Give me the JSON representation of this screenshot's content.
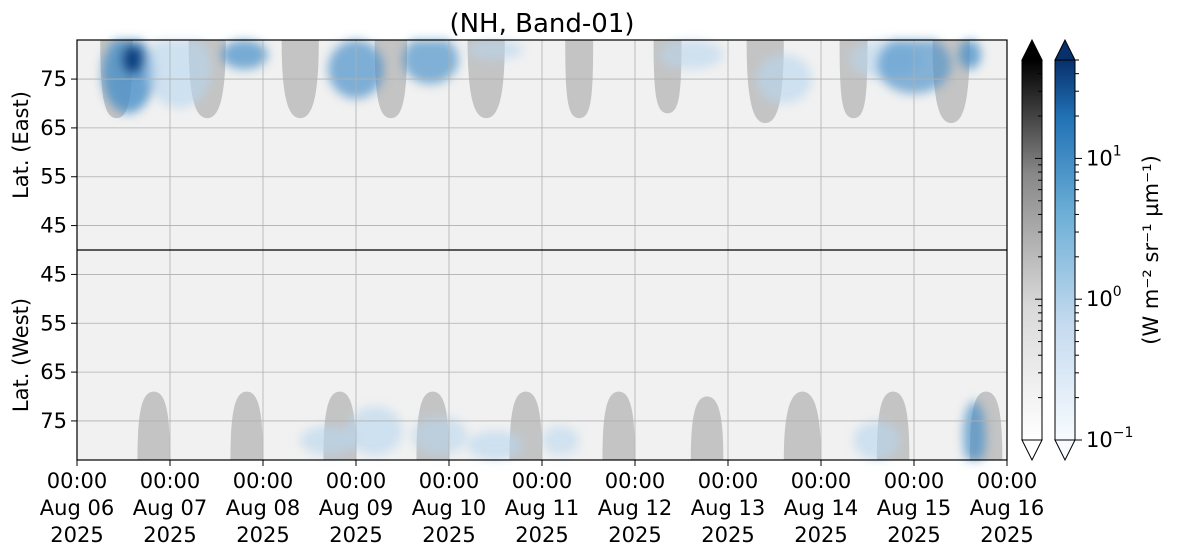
{
  "chart_data": {
    "type": "heatmap",
    "title": "(NH, Band-01)",
    "y_upper_label": "Lat. (East)",
    "y_lower_label": "Lat. (West)",
    "y_upper_ticks": [
      "45",
      "55",
      "65",
      "75"
    ],
    "y_lower_ticks": [
      "75",
      "65",
      "55",
      "45"
    ],
    "x_ticks": [
      {
        "time": "00:00",
        "date": "Aug 06",
        "year": "2025"
      },
      {
        "time": "00:00",
        "date": "Aug 07",
        "year": "2025"
      },
      {
        "time": "00:00",
        "date": "Aug 08",
        "year": "2025"
      },
      {
        "time": "00:00",
        "date": "Aug 09",
        "year": "2025"
      },
      {
        "time": "00:00",
        "date": "Aug 10",
        "year": "2025"
      },
      {
        "time": "00:00",
        "date": "Aug 11",
        "year": "2025"
      },
      {
        "time": "00:00",
        "date": "Aug 12",
        "year": "2025"
      },
      {
        "time": "00:00",
        "date": "Aug 13",
        "year": "2025"
      },
      {
        "time": "00:00",
        "date": "Aug 14",
        "year": "2025"
      },
      {
        "time": "00:00",
        "date": "Aug 15",
        "year": "2025"
      },
      {
        "time": "00:00",
        "date": "Aug 16",
        "year": "2025"
      }
    ],
    "x_range": [
      "2025-08-06 00:00",
      "2025-08-16 00:00"
    ],
    "lat_range": [
      40,
      83
    ],
    "grid": true,
    "colorbar": {
      "label": "(W m⁻² sr⁻¹ µm⁻¹)",
      "scale": "log",
      "range": [
        0.1,
        50
      ],
      "tick_labels": [
        {
          "base": "10",
          "exp": "−1",
          "value": 0.1
        },
        {
          "base": "10",
          "exp": "0",
          "value": 1
        },
        {
          "base": "10",
          "exp": "1",
          "value": 10
        }
      ],
      "colormaps": [
        "Greys",
        "Blues"
      ],
      "extend": "both"
    },
    "colors": {
      "no_data": "#c4c4c4",
      "background": "#f1f1f1",
      "blue_peak": "#0e3f80",
      "blue_mid": "#4a90c8",
      "blue_light": "#b8d6ee"
    },
    "no_data_gaps": [
      {
        "hemisphere": "east",
        "start_day": 0.25,
        "end_day": 0.6,
        "min_lat": 67
      },
      {
        "hemisphere": "east",
        "start_day": 1.2,
        "end_day": 1.6,
        "min_lat": 67
      },
      {
        "hemisphere": "east",
        "start_day": 2.2,
        "end_day": 2.6,
        "min_lat": 67
      },
      {
        "hemisphere": "east",
        "start_day": 3.2,
        "end_day": 3.55,
        "min_lat": 67
      },
      {
        "hemisphere": "east",
        "start_day": 4.2,
        "end_day": 4.6,
        "min_lat": 67
      },
      {
        "hemisphere": "east",
        "start_day": 5.25,
        "end_day": 5.55,
        "min_lat": 67
      },
      {
        "hemisphere": "east",
        "start_day": 6.2,
        "end_day": 6.5,
        "min_lat": 68
      },
      {
        "hemisphere": "east",
        "start_day": 7.2,
        "end_day": 7.6,
        "min_lat": 66
      },
      {
        "hemisphere": "east",
        "start_day": 8.2,
        "end_day": 8.5,
        "min_lat": 67
      },
      {
        "hemisphere": "east",
        "start_day": 9.2,
        "end_day": 9.6,
        "min_lat": 66
      },
      {
        "hemisphere": "west",
        "start_day": 0.65,
        "end_day": 1.0,
        "min_lat": 69
      },
      {
        "hemisphere": "west",
        "start_day": 1.65,
        "end_day": 2.0,
        "min_lat": 69
      },
      {
        "hemisphere": "west",
        "start_day": 2.65,
        "end_day": 3.0,
        "min_lat": 69
      },
      {
        "hemisphere": "west",
        "start_day": 3.65,
        "end_day": 4.0,
        "min_lat": 69
      },
      {
        "hemisphere": "west",
        "start_day": 4.65,
        "end_day": 5.0,
        "min_lat": 69
      },
      {
        "hemisphere": "west",
        "start_day": 5.65,
        "end_day": 6.0,
        "min_lat": 69
      },
      {
        "hemisphere": "west",
        "start_day": 6.6,
        "end_day": 6.95,
        "min_lat": 70
      },
      {
        "hemisphere": "west",
        "start_day": 7.6,
        "end_day": 8.0,
        "min_lat": 69
      },
      {
        "hemisphere": "west",
        "start_day": 8.6,
        "end_day": 8.95,
        "min_lat": 69
      },
      {
        "hemisphere": "west",
        "start_day": 9.6,
        "end_day": 9.95,
        "min_lat": 69
      }
    ],
    "emission_patches": [
      {
        "hemisphere": "east",
        "day": 0.55,
        "lat": 76,
        "rx_day": 0.28,
        "r_lat": 8,
        "intensity": 10
      },
      {
        "hemisphere": "east",
        "day": 0.6,
        "lat": 79,
        "rx_day": 0.12,
        "r_lat": 3,
        "intensity": 28
      },
      {
        "hemisphere": "east",
        "day": 1.1,
        "lat": 77,
        "rx_day": 0.35,
        "r_lat": 8,
        "intensity": 2
      },
      {
        "hemisphere": "east",
        "day": 1.8,
        "lat": 80,
        "rx_day": 0.25,
        "r_lat": 3,
        "intensity": 5
      },
      {
        "hemisphere": "east",
        "day": 3.0,
        "lat": 77,
        "rx_day": 0.3,
        "r_lat": 6,
        "intensity": 4
      },
      {
        "hemisphere": "east",
        "day": 3.8,
        "lat": 79,
        "rx_day": 0.3,
        "r_lat": 5,
        "intensity": 3.5
      },
      {
        "hemisphere": "east",
        "day": 4.5,
        "lat": 81,
        "rx_day": 0.3,
        "r_lat": 2,
        "intensity": 1.5
      },
      {
        "hemisphere": "east",
        "day": 6.6,
        "lat": 80,
        "rx_day": 0.35,
        "r_lat": 3,
        "intensity": 1.5
      },
      {
        "hemisphere": "east",
        "day": 7.6,
        "lat": 75,
        "rx_day": 0.3,
        "r_lat": 5,
        "intensity": 2
      },
      {
        "hemisphere": "east",
        "day": 8.7,
        "lat": 79,
        "rx_day": 0.4,
        "r_lat": 4,
        "intensity": 1.5
      },
      {
        "hemisphere": "east",
        "day": 9.0,
        "lat": 78,
        "rx_day": 0.4,
        "r_lat": 6,
        "intensity": 3
      },
      {
        "hemisphere": "east",
        "day": 9.6,
        "lat": 80,
        "rx_day": 0.12,
        "r_lat": 3,
        "intensity": 8
      },
      {
        "hemisphere": "west",
        "day": 2.7,
        "lat": 79,
        "rx_day": 0.3,
        "r_lat": 3,
        "intensity": 2.5
      },
      {
        "hemisphere": "west",
        "day": 3.2,
        "lat": 77,
        "rx_day": 0.3,
        "r_lat": 5,
        "intensity": 2
      },
      {
        "hemisphere": "west",
        "day": 3.9,
        "lat": 78,
        "rx_day": 0.3,
        "r_lat": 4,
        "intensity": 1.5
      },
      {
        "hemisphere": "west",
        "day": 4.5,
        "lat": 80,
        "rx_day": 0.3,
        "r_lat": 3,
        "intensity": 2
      },
      {
        "hemisphere": "west",
        "day": 5.2,
        "lat": 79,
        "rx_day": 0.2,
        "r_lat": 3,
        "intensity": 1
      },
      {
        "hemisphere": "west",
        "day": 8.6,
        "lat": 79,
        "rx_day": 0.25,
        "r_lat": 4,
        "intensity": 2
      },
      {
        "hemisphere": "west",
        "day": 9.65,
        "lat": 78,
        "rx_day": 0.12,
        "r_lat": 7,
        "intensity": 5
      }
    ]
  }
}
